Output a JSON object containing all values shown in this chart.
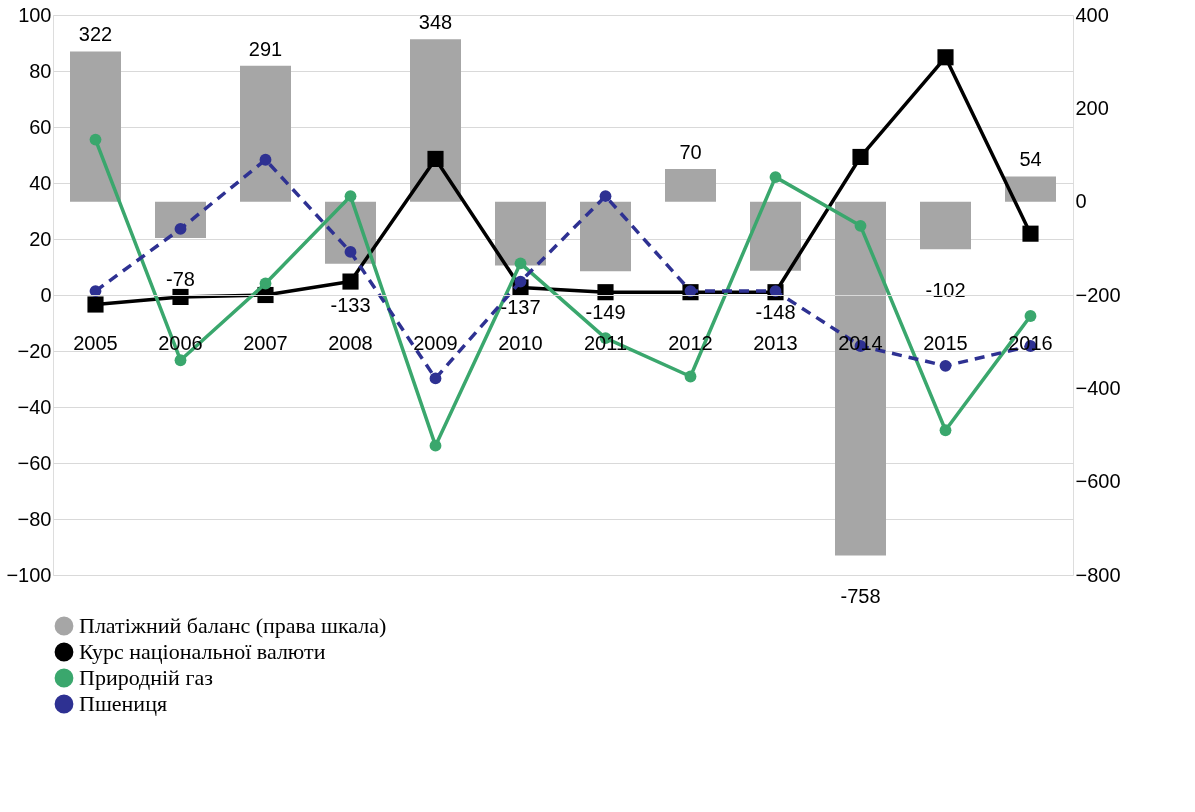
{
  "chart_data": {
    "type": "bar",
    "categories": [
      "2005",
      "2006",
      "2007",
      "2008",
      "2009",
      "2010",
      "2011",
      "2012",
      "2013",
      "2014",
      "2015",
      "2016"
    ],
    "series": [
      {
        "name": "Платіжний баланс (права шкала)",
        "axis": "y2",
        "color": "#a6a6a6",
        "values": [
          322,
          -78,
          291,
          -133,
          348,
          -137,
          -149,
          70,
          -148,
          -758,
          -102,
          54
        ],
        "value_labels": [
          "322",
          "-78",
          "291",
          "-133",
          "348",
          "-137",
          "-149",
          "70",
          "-148",
          "-758",
          "-102",
          "54"
        ]
      },
      {
        "name": "Курс національної валюти",
        "type": "line",
        "color": "#000000",
        "marker": "square",
        "line_style": "solid",
        "values": [
          -3.4,
          -0.7,
          0,
          4.8,
          48.6,
          2.7,
          1,
          1,
          1,
          49.3,
          84.9,
          21.9
        ]
      },
      {
        "name": "Природній газ",
        "type": "line",
        "color": "#3aa76d",
        "marker": "circle",
        "line_style": "solid",
        "values": [
          55.5,
          -23.3,
          4.1,
          35.3,
          -53.8,
          11.3,
          -15.4,
          -29.1,
          42.1,
          24.7,
          -48.3,
          -7.5
        ]
      },
      {
        "name": "Пшениця",
        "type": "line",
        "color": "#2e3192",
        "marker": "circle",
        "line_style": "dashed",
        "values": [
          1.4,
          23.6,
          48.3,
          15.4,
          -29.8,
          4.8,
          35.3,
          1.4,
          1.4,
          -18.2,
          -25.3,
          -18.2
        ]
      }
    ],
    "ylim": [
      -100,
      100
    ],
    "yticks": [
      -100,
      -80,
      -60,
      -40,
      -20,
      0,
      20,
      40,
      60,
      80,
      100
    ],
    "y2lim": [
      -800,
      400
    ],
    "y2ticks": [
      -800,
      -600,
      -400,
      -200,
      0,
      200,
      400
    ],
    "grid": "y",
    "legend": "bottom"
  }
}
